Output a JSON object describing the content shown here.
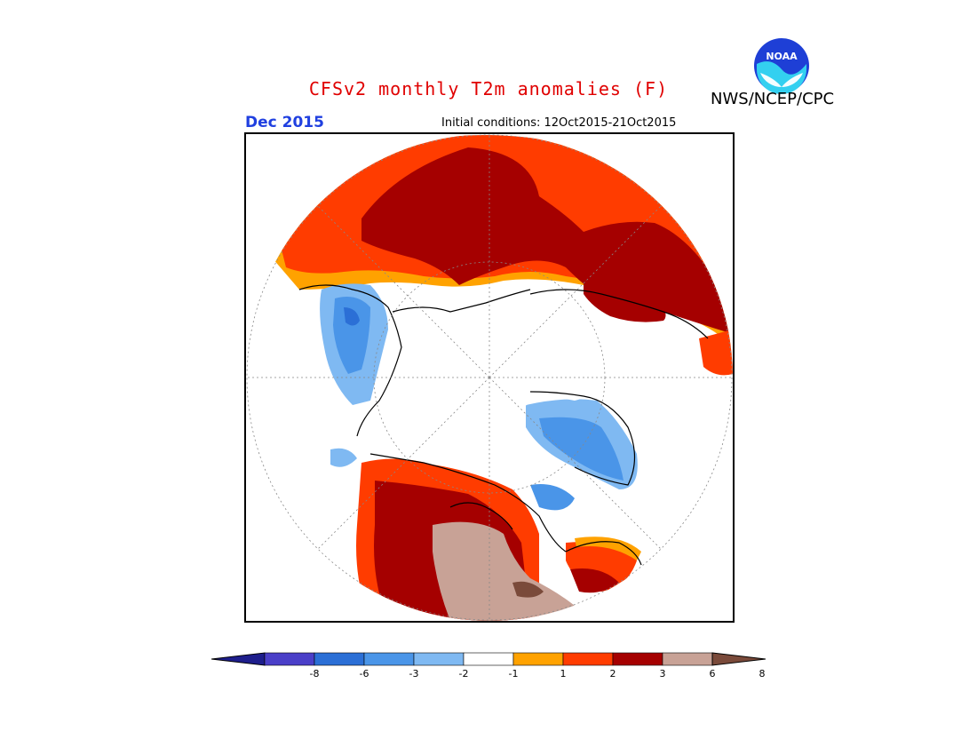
{
  "header": {
    "title": "CFSv2 monthly T2m anomalies (F)",
    "agency": "NWS/NCEP/CPC",
    "logo_text": "NOAA",
    "valid_month": "Dec 2015",
    "initial_conditions": "Initial conditions: 12Oct2015-21Oct2015"
  },
  "colors": {
    "title": "#e00000",
    "month": "#2040e0"
  },
  "legend": {
    "labels": [
      "-8",
      "-6",
      "-3",
      "-2",
      "-1",
      "1",
      "2",
      "3",
      "6",
      "8"
    ],
    "colors": [
      "#1e1e8c",
      "#4a3fc8",
      "#2b6fd6",
      "#4a95e8",
      "#7fb9f2",
      "#ffffff",
      "#ffa200",
      "#ff3c00",
      "#a50000",
      "#c8a296",
      "#7a4a3a"
    ]
  }
}
